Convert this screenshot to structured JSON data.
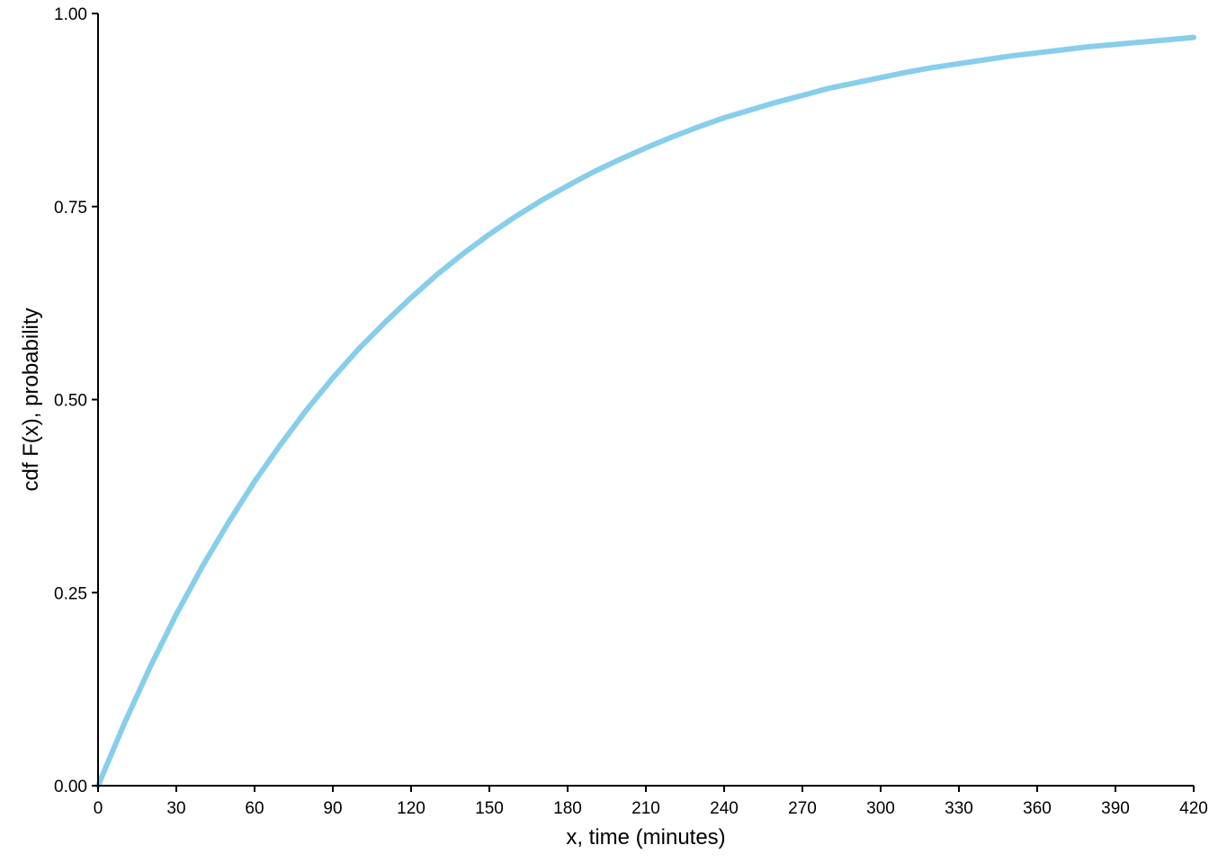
{
  "chart_data": {
    "type": "line",
    "title": "",
    "xlabel": "x, time (minutes)",
    "ylabel": "cdf F(x), probability",
    "xlim": [
      0,
      420
    ],
    "ylim": [
      0,
      1
    ],
    "x_ticks": [
      "0",
      "30",
      "60",
      "90",
      "120",
      "150",
      "180",
      "210",
      "240",
      "270",
      "300",
      "330",
      "360",
      "390",
      "420"
    ],
    "y_ticks": [
      "0.00",
      "0.25",
      "0.50",
      "0.75",
      "1.00"
    ],
    "grid": false,
    "legend": "none",
    "series": [
      {
        "color": "#87CEEB",
        "x": [
          0,
          10,
          20,
          30,
          40,
          50,
          60,
          70,
          80,
          90,
          100,
          110,
          120,
          130,
          140,
          150,
          160,
          170,
          180,
          190,
          200,
          210,
          220,
          230,
          240,
          250,
          260,
          270,
          280,
          290,
          300,
          310,
          320,
          330,
          340,
          350,
          360,
          370,
          380,
          390,
          400,
          410,
          420
        ],
        "y": [
          0.0,
          0.08,
          0.154,
          0.222,
          0.284,
          0.341,
          0.394,
          0.442,
          0.487,
          0.528,
          0.566,
          0.6,
          0.632,
          0.662,
          0.689,
          0.714,
          0.737,
          0.758,
          0.777,
          0.795,
          0.811,
          0.826,
          0.84,
          0.853,
          0.865,
          0.875,
          0.885,
          0.894,
          0.903,
          0.91,
          0.917,
          0.924,
          0.93,
          0.935,
          0.94,
          0.945,
          0.949,
          0.953,
          0.957,
          0.96,
          0.963,
          0.966,
          0.969
        ]
      }
    ]
  }
}
